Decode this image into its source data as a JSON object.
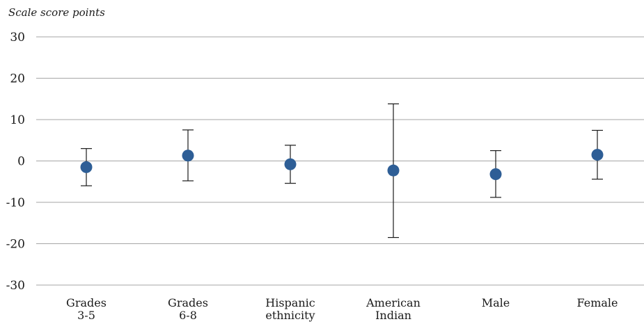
{
  "chart_data": {
    "type": "scatter",
    "ylabel": "Scale score points",
    "xlabel": "",
    "ylim": [
      -30,
      30
    ],
    "yticks": [
      30,
      20,
      10,
      0,
      -10,
      -20,
      -30
    ],
    "ytick_labels": [
      "30",
      "20",
      "10",
      "0",
      "-10",
      "-20",
      "-30"
    ],
    "grid": true,
    "categories": [
      [
        "Grades",
        "3-5"
      ],
      [
        "Grades",
        "6-8"
      ],
      [
        "Hispanic",
        "ethnicity"
      ],
      [
        "American",
        "Indian"
      ],
      [
        "Male"
      ],
      [
        "Female"
      ]
    ],
    "points": [
      {
        "value": -1.5,
        "low": -6.0,
        "high": 3.0
      },
      {
        "value": 1.3,
        "low": -4.8,
        "high": 7.5
      },
      {
        "value": -0.8,
        "low": -5.4,
        "high": 3.8
      },
      {
        "value": -2.3,
        "low": -18.5,
        "high": 13.8
      },
      {
        "value": -3.2,
        "low": -8.8,
        "high": 2.5
      },
      {
        "value": 1.5,
        "low": -4.4,
        "high": 7.4
      }
    ],
    "colors": {
      "marker": "#2e5e96",
      "errorbar": "#1a1a1a",
      "grid": "#a6a6a6"
    }
  }
}
